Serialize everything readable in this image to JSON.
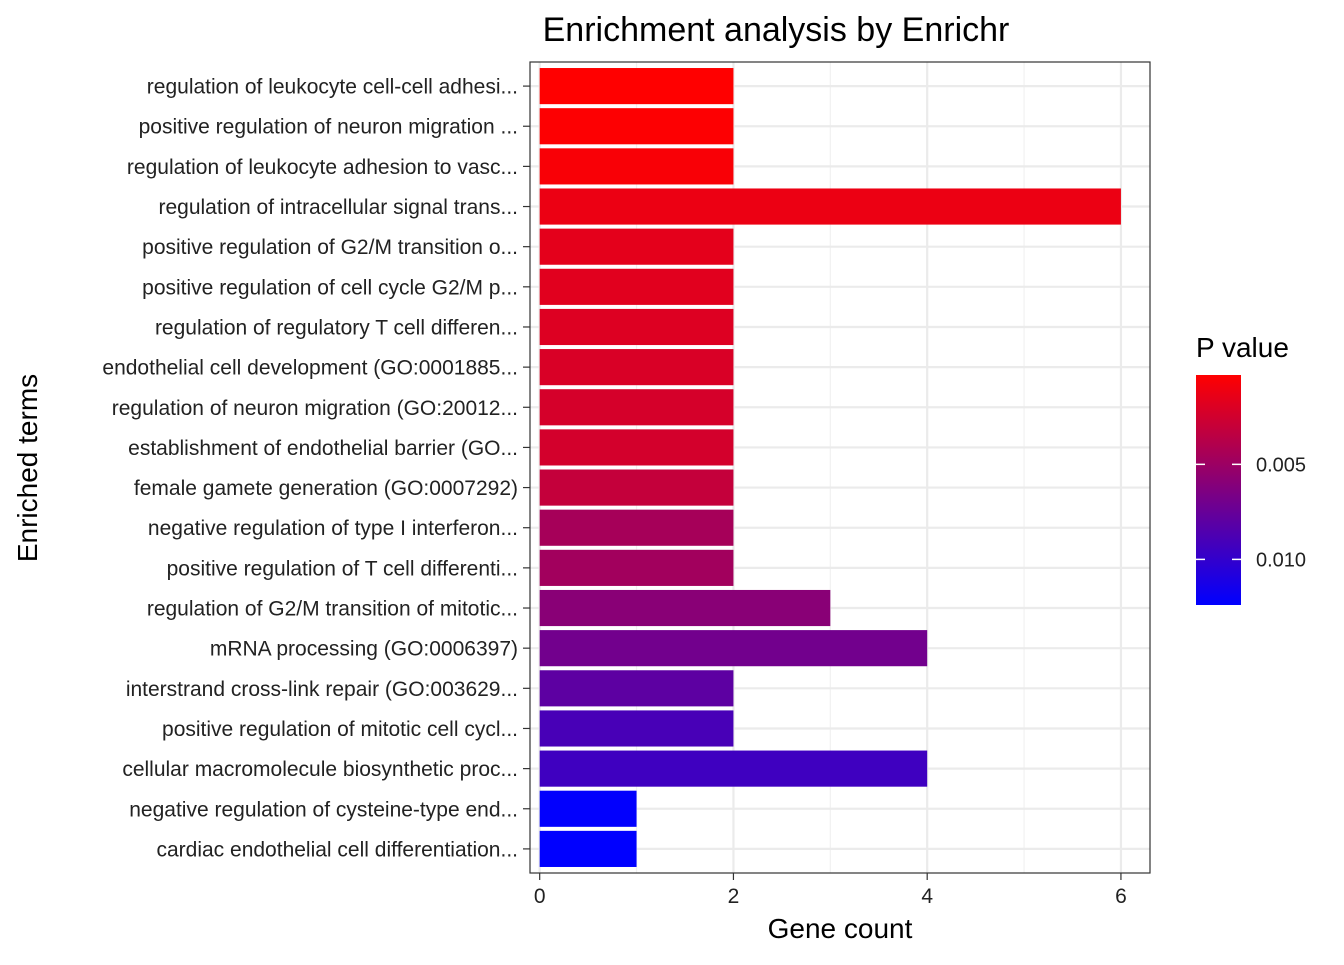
{
  "chart_data": {
    "type": "bar",
    "orientation": "horizontal",
    "title": "Enrichment analysis by Enrichr",
    "xlabel": "Gene count",
    "ylabel": "Enriched terms",
    "xlim": [
      -0.1,
      6.3
    ],
    "xticks": [
      0,
      2,
      4,
      6
    ],
    "grid": true,
    "legend": {
      "title": "P value",
      "position": "right",
      "range": [
        0.0003,
        0.0124
      ],
      "ticks": [
        0.005,
        0.01
      ],
      "tick_labels": [
        "0.005",
        "0.010"
      ],
      "color_low": "#ff0000",
      "color_high": "#0000ff"
    },
    "categories": [
      "regulation of leukocyte cell-cell adhesi...",
      "positive regulation of neuron migration ...",
      "regulation of leukocyte adhesion to vasc...",
      "regulation of intracellular signal trans...",
      "positive regulation of G2/M transition o...",
      "positive regulation of cell cycle G2/M p...",
      "regulation of regulatory T cell differen...",
      "endothelial cell development (GO:0001885...",
      "regulation of neuron migration (GO:20012...",
      "establishment of endothelial barrier (GO...",
      "female gamete generation (GO:0007292)",
      "negative regulation of type I interferon...",
      "positive regulation of T cell differenti...",
      "regulation of G2/M transition of mitotic...",
      "mRNA processing (GO:0006397)",
      "interstrand cross-link repair (GO:003629...",
      "positive regulation of mitotic cell cycl...",
      "cellular macromolecule biosynthetic proc...",
      "negative regulation of cysteine-type end...",
      "cardiac endothelial cell differentiation..."
    ],
    "values": [
      2,
      2,
      2,
      6,
      2,
      2,
      2,
      2,
      2,
      2,
      2,
      2,
      2,
      3,
      4,
      2,
      2,
      4,
      1,
      1
    ],
    "pvalues": [
      0.0003,
      0.0004,
      0.0006,
      0.0012,
      0.0016,
      0.0017,
      0.0019,
      0.0021,
      0.0023,
      0.0024,
      0.0031,
      0.0045,
      0.0047,
      0.0059,
      0.007,
      0.008,
      0.009,
      0.0094,
      0.0123,
      0.0124
    ]
  }
}
